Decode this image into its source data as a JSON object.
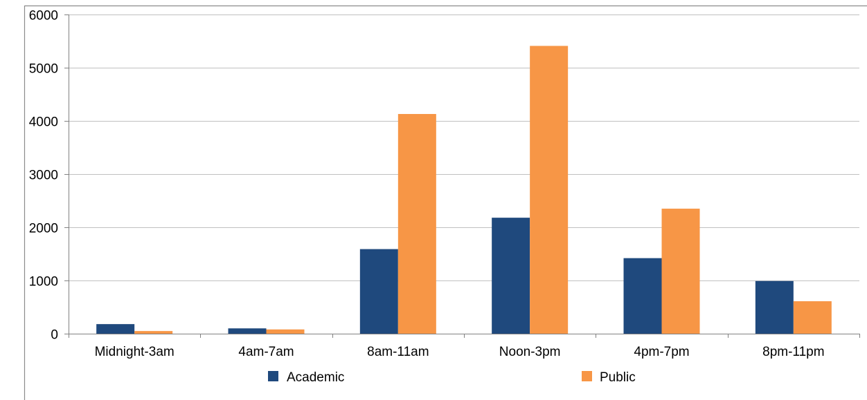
{
  "chart_data": {
    "type": "bar",
    "categories": [
      "Midnight-3am",
      "4am-7am",
      "8am-11am",
      "Noon-3pm",
      "4pm-7pm",
      "8pm-11pm"
    ],
    "series": [
      {
        "name": "Academic",
        "color": "#1f497d",
        "values": [
          180,
          100,
          1590,
          2180,
          1420,
          990
        ]
      },
      {
        "name": "Public",
        "color": "#f79646",
        "values": [
          50,
          80,
          4130,
          5410,
          2350,
          610
        ]
      }
    ],
    "ylim": [
      0,
      6000
    ],
    "yticks": [
      0,
      1000,
      2000,
      3000,
      4000,
      5000,
      6000
    ],
    "grid": true,
    "legend_position": "bottom",
    "colors": {
      "gridline": "#c0c0c0",
      "axis": "#808080",
      "frame": "#8a8a8a"
    }
  }
}
